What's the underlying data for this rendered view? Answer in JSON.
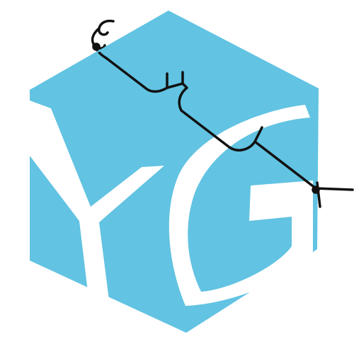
{
  "logo": {
    "lettering": "YG",
    "colors": {
      "cube_face": "#62c3e2",
      "letters": "#ffffff",
      "wire": "#111111",
      "background": "#ffffff"
    }
  }
}
